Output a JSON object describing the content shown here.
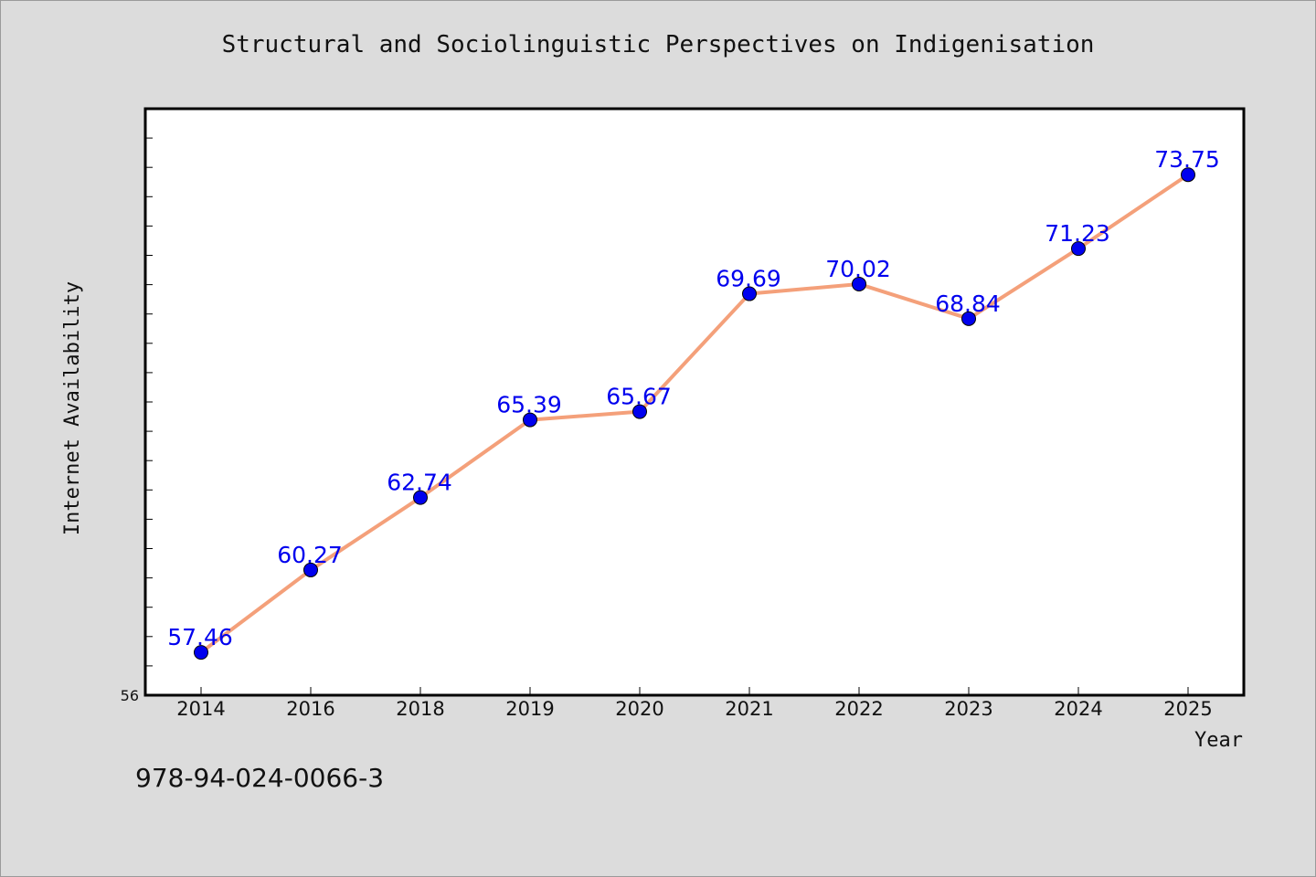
{
  "title": "Structural and Sociolinguistic Perspectives on Indigenisation",
  "footer_code": "978-94-024-0066-3",
  "chart_data": {
    "type": "line",
    "title": "Structural and Sociolinguistic Perspectives on Indigenisation",
    "xlabel": "Year",
    "ylabel": "Internet Availability",
    "categories": [
      "2014",
      "2016",
      "2018",
      "2019",
      "2020",
      "2021",
      "2022",
      "2023",
      "2024",
      "2025"
    ],
    "series": [
      {
        "values": [
          57.46,
          60.27,
          62.74,
          65.39,
          65.67,
          69.69,
          70.02,
          68.84,
          71.23,
          73.75
        ],
        "labels": [
          "57.46",
          "60.27",
          "62.74",
          "65.39",
          "65.67",
          "69.69",
          "70.02",
          "68.84",
          "71.23",
          "73.75"
        ]
      }
    ],
    "ylim": [
      56,
      76
    ],
    "y_tick_labels": [
      "56"
    ],
    "y_minor_step": 1,
    "grid": false,
    "line_color": "#f4a07a",
    "marker_color": "#0000ee",
    "label_color": "#0000ee"
  }
}
